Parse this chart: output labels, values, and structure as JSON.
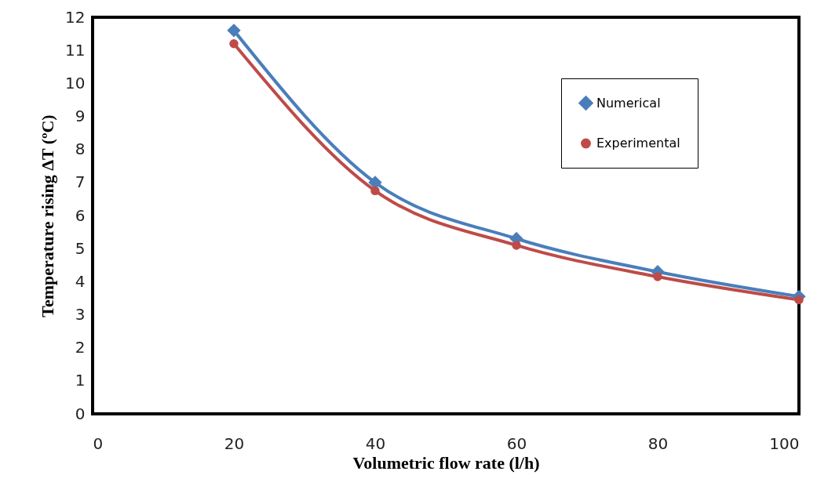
{
  "chart_data": {
    "type": "line",
    "xlabel": "Volumetric flow rate (l/h)",
    "ylabel": "Temperature rising ΔT (ºC)",
    "x": [
      20,
      40,
      60,
      80,
      100
    ],
    "series": [
      {
        "name": "Numerical",
        "color": "#4a7ebb",
        "marker": "diamond",
        "values": [
          11.6,
          7.0,
          5.3,
          4.3,
          3.55
        ]
      },
      {
        "name": "Experimental",
        "color": "#be4b48",
        "marker": "circle",
        "values": [
          11.2,
          6.75,
          5.1,
          4.15,
          3.45
        ]
      }
    ],
    "xlim": [
      0,
      100
    ],
    "xticks": [
      0,
      20,
      40,
      60,
      80,
      100
    ],
    "ylim": [
      0,
      12
    ],
    "yticks": [
      0,
      1,
      2,
      3,
      4,
      5,
      6,
      7,
      8,
      9,
      10,
      11,
      12
    ],
    "grid": false,
    "legend": "top right",
    "line_style": "solid"
  }
}
